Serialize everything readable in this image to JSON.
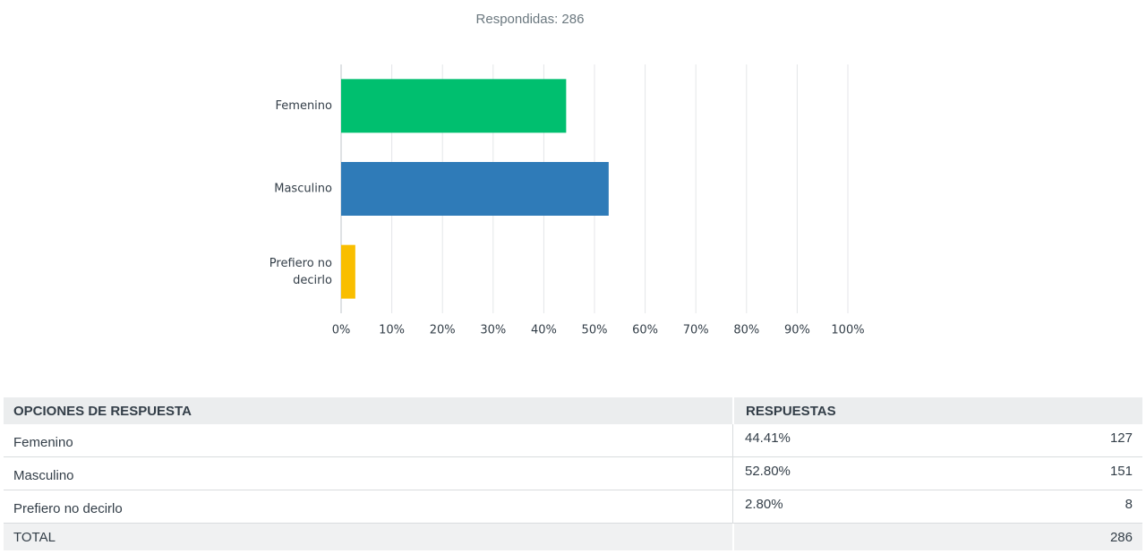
{
  "chart_data": {
    "type": "bar",
    "orientation": "horizontal",
    "subtitle": "Respondidas: 286",
    "categories": [
      "Femenino",
      "Masculino",
      "Prefiero no decirlo"
    ],
    "values": [
      44.41,
      52.8,
      2.8
    ],
    "colors": [
      "#00bf6f",
      "#2f7bb8",
      "#f9be00"
    ],
    "xlim": [
      0,
      100
    ],
    "xticks": [
      {
        "value": 0,
        "label": "0%"
      },
      {
        "value": 10,
        "label": "10%"
      },
      {
        "value": 20,
        "label": "20%"
      },
      {
        "value": 30,
        "label": "30%"
      },
      {
        "value": 40,
        "label": "40%"
      },
      {
        "value": 50,
        "label": "50%"
      },
      {
        "value": 60,
        "label": "60%"
      },
      {
        "value": 70,
        "label": "70%"
      },
      {
        "value": 80,
        "label": "80%"
      },
      {
        "value": 90,
        "label": "90%"
      },
      {
        "value": 100,
        "label": "100%"
      }
    ],
    "grid": true
  },
  "table": {
    "header": [
      "OPCIONES DE RESPUESTA",
      "RESPUESTAS"
    ],
    "rows": [
      [
        "Femenino",
        "44.41%",
        "127"
      ],
      [
        "Masculino",
        "52.80%",
        "151"
      ],
      [
        "Prefiero no decirlo",
        "2.80%",
        "8"
      ]
    ],
    "total": [
      "TOTAL",
      "286"
    ]
  }
}
